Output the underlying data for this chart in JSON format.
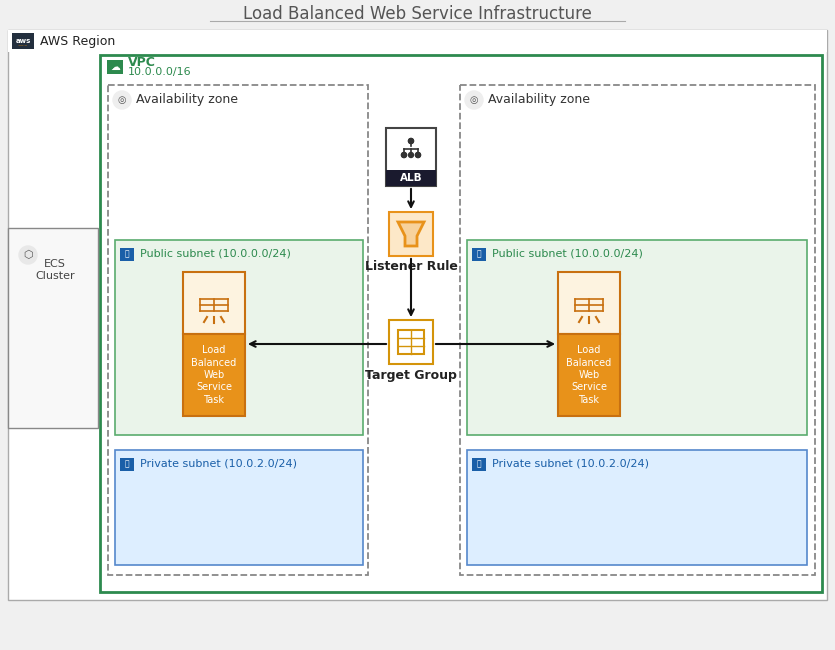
{
  "title": "Load Balanced Web Service Infrastructure",
  "bg_color": "#f5f5f5",
  "aws_region_label": "AWS Region",
  "ecs_label": "ECS\nCluster",
  "vpc_label": "VPC",
  "vpc_cidr": "10.0.0.0/16",
  "az_label": "Availability zone",
  "public_subnet_label": "Public subnet (10.0.0.0/24)",
  "private_subnet_label": "Private subnet (10.0.2.0/24)",
  "alb_label": "ALB",
  "listener_rule_label": "Listener Rule",
  "target_group_label": "Target Group",
  "task_label": "Load\nBalanced\nWeb\nService\nTask",
  "colors": {
    "page_bg": "#f0f0f0",
    "aws_region_bg": "#ffffff",
    "aws_region_border": "#aaaaaa",
    "aws_header_bg": "#232f3e",
    "vpc_border": "#2d8a4e",
    "vpc_label_color": "#2d8a4e",
    "az_border": "#888888",
    "az_bg": "none",
    "public_subnet_bg": "#eaf4ea",
    "public_subnet_border": "#5aac6e",
    "private_subnet_bg": "#ddeeff",
    "private_subnet_border": "#5588cc",
    "alb_border": "#444444",
    "alb_bg": "#ffffff",
    "alb_bar_bg": "#1a1a2e",
    "listener_bg": "#fde8c8",
    "listener_border": "#e8921a",
    "listener_icon": "#e8921a",
    "target_bg": "#ffffff",
    "target_border": "#d4940a",
    "task_top_bg": "#fdf3e0",
    "task_bottom_bg": "#e8921a",
    "task_border": "#c87010",
    "task_icon_color": "#c87010",
    "arrow_color": "#111111",
    "green_icon_bg": "#2d8a4e",
    "blue_icon_bg": "#1a5fa8",
    "lock_icon_color": "#ffffff",
    "ecs_border": "#888888",
    "ecs_bg": "#f8f8f8"
  },
  "layout": {
    "fig_w": 8.35,
    "fig_h": 6.5,
    "dpi": 100
  }
}
